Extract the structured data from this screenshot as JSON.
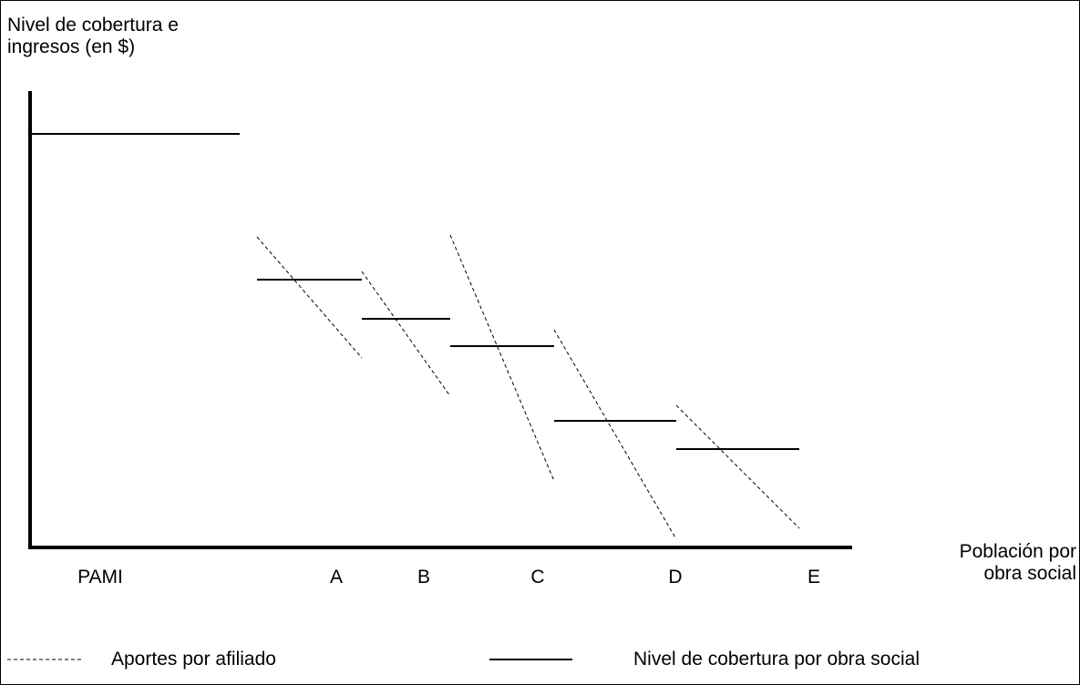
{
  "y_axis_title": {
    "line1": "Nivel de cobertura e",
    "line2": "ingresos (en $)"
  },
  "x_axis_title": {
    "line1": "Población por",
    "line2": "obra social"
  },
  "categories": [
    "PAMI",
    "A",
    "B",
    "C",
    "D",
    "E"
  ],
  "legend": {
    "dashed": "Aportes por afiliado",
    "solid": "Nivel de cobertura por obra social"
  }
}
